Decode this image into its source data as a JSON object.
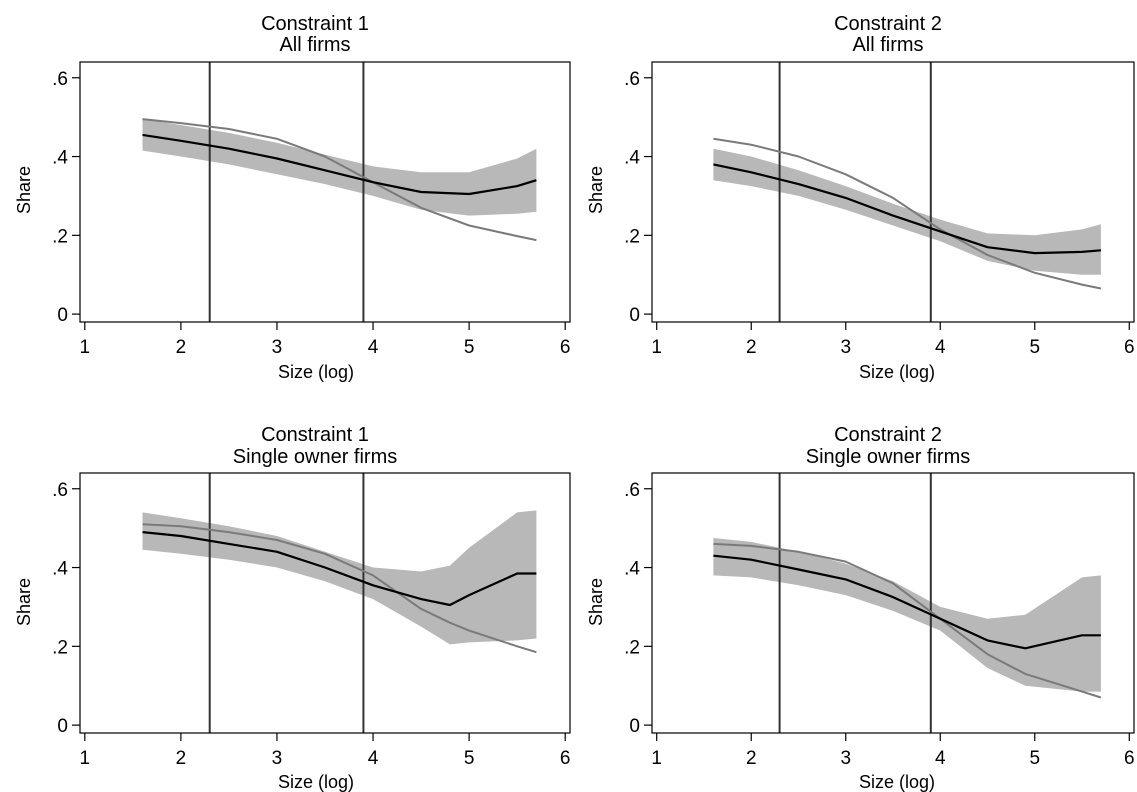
{
  "chart_data": [
    {
      "type": "line",
      "title": "Constraint 1",
      "subtitle": "All firms",
      "xlabel": "Size (log)",
      "ylabel": "Share",
      "xlim": [
        0.95,
        6.05
      ],
      "ylim": [
        -0.02,
        0.64
      ],
      "xticks": [
        "1",
        "2",
        "3",
        "4",
        "5",
        "6"
      ],
      "yticks": [
        "0",
        ".2",
        ".4",
        ".6"
      ],
      "vlines": [
        2.3,
        3.9
      ],
      "x": [
        1.6,
        2.0,
        2.5,
        3.0,
        3.5,
        4.0,
        4.5,
        5.0,
        5.5,
        5.7
      ],
      "series": [
        {
          "role": "fit",
          "color": "#000000",
          "values": [
            0.455,
            0.44,
            0.42,
            0.395,
            0.365,
            0.335,
            0.31,
            0.305,
            0.325,
            0.34
          ]
        },
        {
          "role": "ci_lower",
          "values": [
            0.415,
            0.4,
            0.38,
            0.355,
            0.33,
            0.3,
            0.265,
            0.25,
            0.255,
            0.26
          ]
        },
        {
          "role": "ci_upper",
          "values": [
            0.495,
            0.48,
            0.46,
            0.435,
            0.405,
            0.375,
            0.36,
            0.36,
            0.395,
            0.42
          ]
        },
        {
          "role": "comparison",
          "color": "#7a7a7a",
          "values": [
            0.495,
            0.485,
            0.47,
            0.445,
            0.4,
            0.335,
            0.27,
            0.225,
            0.198,
            0.188
          ]
        }
      ]
    },
    {
      "type": "line",
      "title": "Constraint 2",
      "subtitle": "All firms",
      "xlabel": "Size (log)",
      "ylabel": "Share",
      "xlim": [
        0.95,
        6.05
      ],
      "ylim": [
        -0.02,
        0.64
      ],
      "xticks": [
        "1",
        "2",
        "3",
        "4",
        "5",
        "6"
      ],
      "yticks": [
        "0",
        ".2",
        ".4",
        ".6"
      ],
      "vlines": [
        2.3,
        3.9
      ],
      "x": [
        1.6,
        2.0,
        2.5,
        3.0,
        3.5,
        4.0,
        4.5,
        5.0,
        5.5,
        5.7
      ],
      "series": [
        {
          "role": "fit",
          "color": "#000000",
          "values": [
            0.38,
            0.36,
            0.33,
            0.295,
            0.25,
            0.21,
            0.17,
            0.155,
            0.158,
            0.162
          ]
        },
        {
          "role": "ci_lower",
          "values": [
            0.34,
            0.325,
            0.3,
            0.265,
            0.225,
            0.185,
            0.135,
            0.11,
            0.1,
            0.1
          ]
        },
        {
          "role": "ci_upper",
          "values": [
            0.42,
            0.4,
            0.365,
            0.325,
            0.28,
            0.24,
            0.205,
            0.2,
            0.215,
            0.228
          ]
        },
        {
          "role": "comparison",
          "color": "#7a7a7a",
          "values": [
            0.445,
            0.43,
            0.4,
            0.355,
            0.295,
            0.215,
            0.15,
            0.105,
            0.075,
            0.065
          ]
        }
      ]
    },
    {
      "type": "line",
      "title": "Constraint 1",
      "subtitle": "Single owner firms",
      "xlabel": "Size (log)",
      "ylabel": "Share",
      "xlim": [
        0.95,
        6.05
      ],
      "ylim": [
        -0.02,
        0.64
      ],
      "xticks": [
        "1",
        "2",
        "3",
        "4",
        "5",
        "6"
      ],
      "yticks": [
        "0",
        ".2",
        ".4",
        ".6"
      ],
      "vlines": [
        2.3,
        3.9
      ],
      "x": [
        1.6,
        2.0,
        2.5,
        3.0,
        3.5,
        4.0,
        4.5,
        4.8,
        5.0,
        5.5,
        5.7
      ],
      "series": [
        {
          "role": "fit",
          "color": "#000000",
          "values": [
            0.49,
            0.48,
            0.46,
            0.44,
            0.4,
            0.355,
            0.32,
            0.305,
            0.33,
            0.385,
            0.385
          ]
        },
        {
          "role": "ci_lower",
          "values": [
            0.445,
            0.435,
            0.42,
            0.4,
            0.365,
            0.32,
            0.25,
            0.205,
            0.21,
            0.215,
            0.22
          ]
        },
        {
          "role": "ci_upper",
          "values": [
            0.54,
            0.525,
            0.505,
            0.48,
            0.44,
            0.4,
            0.39,
            0.405,
            0.45,
            0.54,
            0.545
          ]
        },
        {
          "role": "comparison",
          "color": "#7a7a7a",
          "values": [
            0.51,
            0.505,
            0.49,
            0.47,
            0.435,
            0.38,
            0.295,
            0.26,
            0.24,
            0.2,
            0.185
          ]
        }
      ]
    },
    {
      "type": "line",
      "title": "Constraint 2",
      "subtitle": "Single owner firms",
      "xlabel": "Size (log)",
      "ylabel": "Share",
      "xlim": [
        0.95,
        6.05
      ],
      "ylim": [
        -0.02,
        0.64
      ],
      "xticks": [
        "1",
        "2",
        "3",
        "4",
        "5",
        "6"
      ],
      "yticks": [
        "0",
        ".2",
        ".4",
        ".6"
      ],
      "vlines": [
        2.3,
        3.9
      ],
      "x": [
        1.6,
        2.0,
        2.5,
        3.0,
        3.5,
        4.0,
        4.5,
        4.9,
        5.5,
        5.7
      ],
      "series": [
        {
          "role": "fit",
          "color": "#000000",
          "values": [
            0.43,
            0.42,
            0.395,
            0.37,
            0.325,
            0.27,
            0.215,
            0.195,
            0.228,
            0.228
          ]
        },
        {
          "role": "ci_lower",
          "values": [
            0.38,
            0.375,
            0.355,
            0.33,
            0.29,
            0.24,
            0.145,
            0.1,
            0.085,
            0.085
          ]
        },
        {
          "role": "ci_upper",
          "values": [
            0.475,
            0.465,
            0.44,
            0.41,
            0.365,
            0.3,
            0.27,
            0.28,
            0.375,
            0.38
          ]
        },
        {
          "role": "comparison",
          "color": "#7a7a7a",
          "values": [
            0.46,
            0.455,
            0.44,
            0.415,
            0.36,
            0.27,
            0.18,
            0.13,
            0.085,
            0.07
          ]
        }
      ]
    }
  ]
}
